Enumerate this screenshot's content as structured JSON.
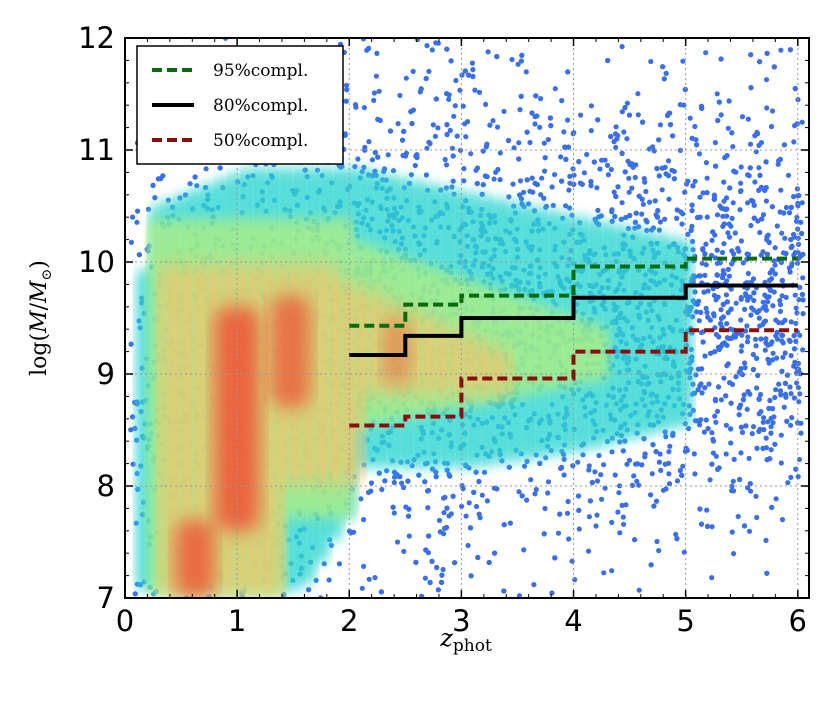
{
  "chart_data": {
    "type": "scatter",
    "x_range": [
      0,
      6.1
    ],
    "y_range": [
      7,
      12
    ],
    "x_ticks": [
      0,
      1,
      2,
      3,
      4,
      5,
      6
    ],
    "y_ticks": [
      7,
      8,
      9,
      10,
      11,
      12
    ],
    "x_tick_labels": [
      "0",
      "1",
      "2",
      "3",
      "4",
      "5",
      "6"
    ],
    "y_tick_labels": [
      "7",
      "8",
      "9",
      "10",
      "11",
      "12"
    ],
    "xlabel_main": "z",
    "xlabel_sub": "phot",
    "ylabel_parts": {
      "prefix": "log(",
      "M": "M",
      "slash": "/",
      "M2": "M",
      "sub": "⊙",
      "suffix": ")"
    },
    "grid": true,
    "legend_position": "top-left",
    "background_scatter_color": "#3a6fe8",
    "density_colormap": [
      "#3a6fe8",
      "#2fd6d0",
      "#b6f07c",
      "#f7c26b",
      "#f2402a"
    ],
    "series": [
      {
        "name": "95%compl.",
        "label": "95%compl.",
        "color": "#0a6b0a",
        "style": "dashed",
        "x": [
          2,
          2.5,
          2.5,
          3,
          3,
          4,
          4,
          5,
          5,
          6
        ],
        "y": [
          9.43,
          9.43,
          9.62,
          9.62,
          9.7,
          9.7,
          9.96,
          9.96,
          10.03,
          10.03
        ]
      },
      {
        "name": "80%compl.",
        "label": "80%compl.",
        "color": "#000000",
        "style": "solid",
        "x": [
          2,
          2.5,
          2.5,
          3,
          3,
          4,
          4,
          5,
          5,
          6
        ],
        "y": [
          9.17,
          9.17,
          9.34,
          9.34,
          9.5,
          9.5,
          9.68,
          9.68,
          9.79,
          9.79
        ]
      },
      {
        "name": "50%compl.",
        "label": "50%compl.",
        "color": "#8b0e0e",
        "style": "dashed",
        "x": [
          2,
          2.5,
          2.5,
          3,
          3,
          4,
          4,
          5,
          5,
          6
        ],
        "y": [
          8.54,
          8.54,
          8.62,
          8.62,
          8.96,
          8.96,
          9.2,
          9.2,
          9.39,
          9.39
        ]
      }
    ]
  }
}
